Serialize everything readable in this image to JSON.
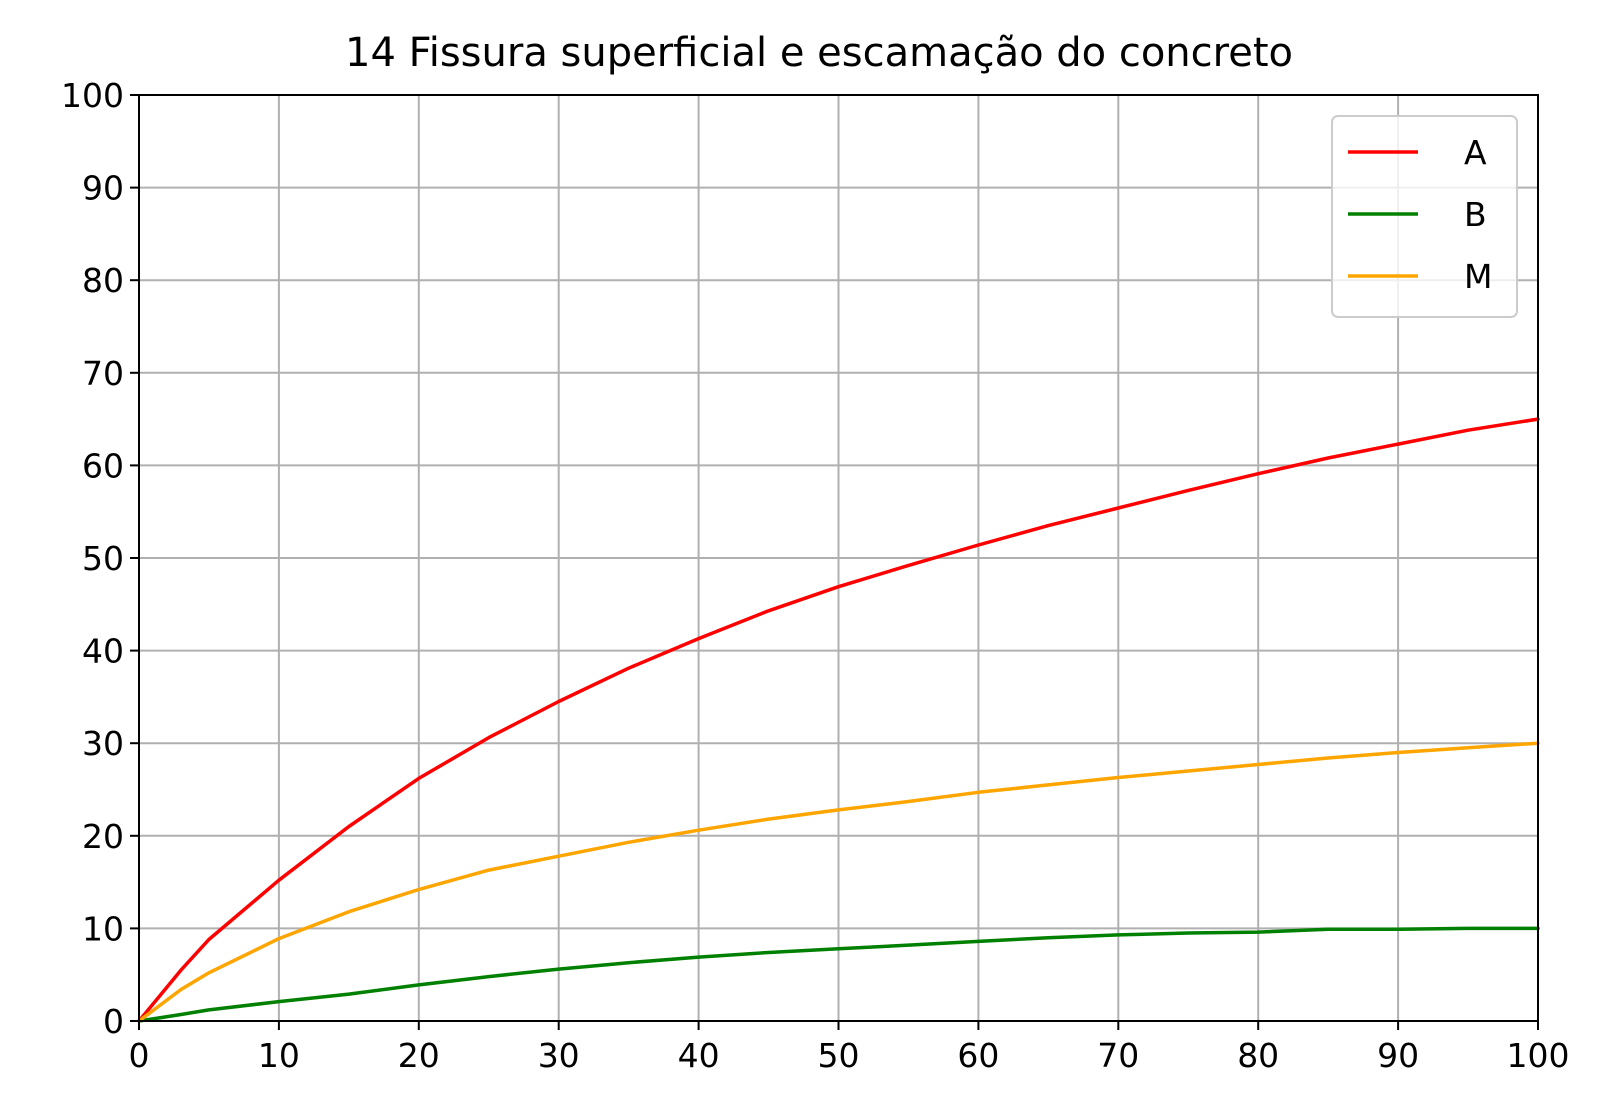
{
  "chart_data": {
    "type": "line",
    "title": "14 Fissura superficial e escamação do concreto",
    "xlabel": "",
    "ylabel": "",
    "xlim": [
      0,
      100
    ],
    "ylim": [
      0,
      100
    ],
    "x_ticks": [
      "0",
      "10",
      "20",
      "30",
      "40",
      "50",
      "60",
      "70",
      "80",
      "90",
      "100"
    ],
    "y_ticks": [
      "0",
      "10",
      "20",
      "30",
      "40",
      "50",
      "60",
      "70",
      "80",
      "90",
      "100"
    ],
    "grid": true,
    "legend_position": "top-right",
    "x": [
      0,
      3,
      5,
      10,
      15,
      20,
      25,
      30,
      35,
      40,
      45,
      50,
      55,
      60,
      65,
      70,
      75,
      80,
      85,
      90,
      95,
      100
    ],
    "series": [
      {
        "name": "A",
        "color": "#ff0000",
        "values": [
          0,
          5.5,
          8.8,
          15.2,
          21.0,
          26.2,
          30.6,
          34.5,
          38.1,
          41.3,
          44.3,
          46.9,
          49.2,
          51.4,
          53.5,
          55.4,
          57.3,
          59.1,
          60.8,
          62.3,
          63.8,
          65.0
        ]
      },
      {
        "name": "B",
        "color": "#008000",
        "values": [
          0,
          0.7,
          1.2,
          2.1,
          2.9,
          3.9,
          4.8,
          5.6,
          6.3,
          6.9,
          7.4,
          7.8,
          8.2,
          8.6,
          9.0,
          9.3,
          9.5,
          9.6,
          9.9,
          9.9,
          10.0,
          10.0
        ]
      },
      {
        "name": "M",
        "color": "#ffa500",
        "values": [
          0,
          3.4,
          5.2,
          8.9,
          11.8,
          14.2,
          16.3,
          17.8,
          19.3,
          20.6,
          21.8,
          22.8,
          23.7,
          24.7,
          25.5,
          26.3,
          27.0,
          27.7,
          28.4,
          29.0,
          29.5,
          30.0
        ]
      }
    ]
  }
}
